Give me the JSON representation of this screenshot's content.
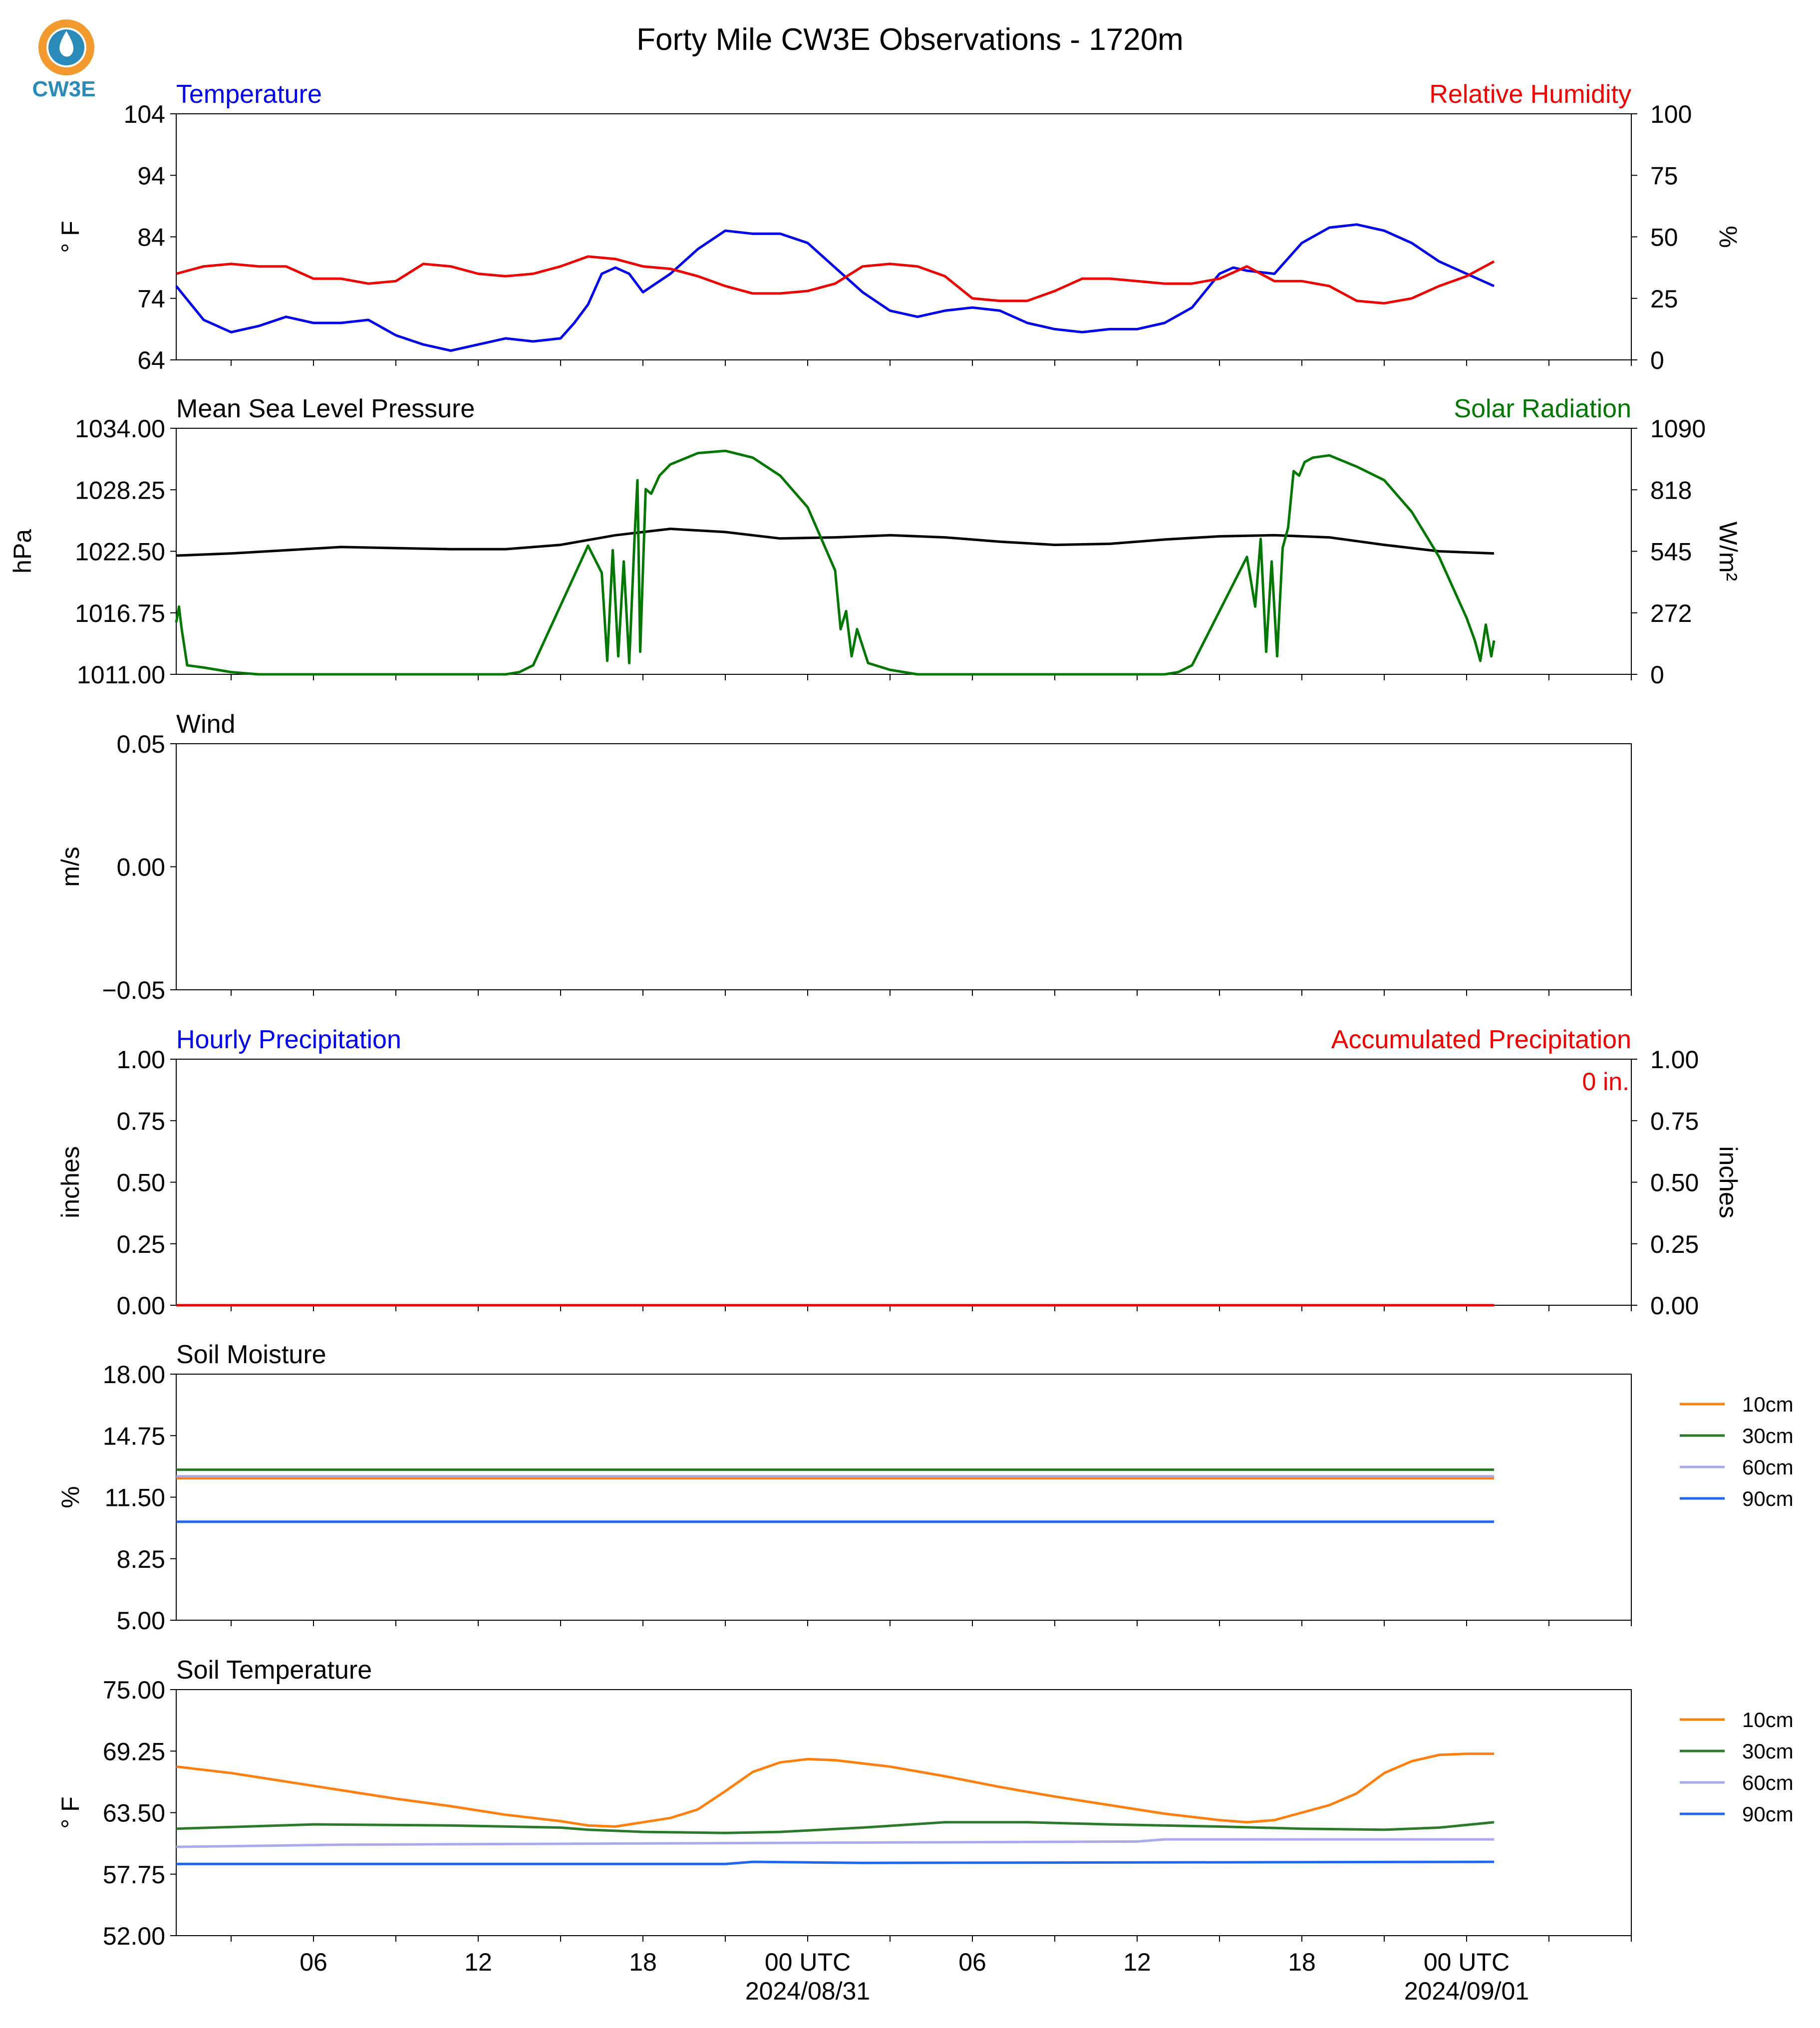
{
  "title": "Forty Mile CW3E Observations - 1720m",
  "logo": {
    "text": "CW3E",
    "ring_color": "#f29a2e",
    "drop_color": "#2a8ab8"
  },
  "x_axis": {
    "range_hours": [
      0,
      53
    ],
    "start_reference": "2024/08/30 01 UTC",
    "ticks": [
      {
        "h": 5,
        "label": "06"
      },
      {
        "h": 11,
        "label": "12"
      },
      {
        "h": 17,
        "label": "18"
      },
      {
        "h": 23,
        "label": "00 UTC",
        "date": "2024/08/31"
      },
      {
        "h": 29,
        "label": "06"
      },
      {
        "h": 35,
        "label": "12"
      },
      {
        "h": 41,
        "label": "18"
      },
      {
        "h": 47,
        "label": "00 UTC",
        "date": "2024/09/01"
      }
    ],
    "minor_every_hours": 3
  },
  "chart_data": [
    {
      "type": "line",
      "panel": "temperature_humidity",
      "left_title": "Temperature",
      "right_title": "Relative Humidity",
      "ylabel_left": "° F",
      "ylabel_right": "%",
      "ylim_left": [
        64,
        104
      ],
      "yticks_left": [
        "64",
        "74",
        "84",
        "94",
        "104"
      ],
      "ylim_right": [
        0,
        100
      ],
      "yticks_right": [
        "0",
        "25",
        "50",
        "75",
        "100"
      ],
      "series": [
        {
          "name": "Temperature",
          "color": "#0000ee",
          "axis": "left",
          "x": [
            0,
            1,
            2,
            3,
            4,
            5,
            6,
            7,
            8,
            9,
            10,
            11,
            12,
            13,
            14,
            14.5,
            15,
            15.5,
            16,
            16.5,
            17,
            18,
            19,
            20,
            21,
            22,
            23,
            24,
            25,
            26,
            27,
            28,
            29,
            30,
            31,
            32,
            33,
            34,
            35,
            36,
            37,
            38,
            38.5,
            39,
            40,
            41,
            42,
            43,
            44,
            45,
            46,
            47,
            48
          ],
          "y": [
            76,
            70.5,
            68.5,
            69.5,
            71,
            70,
            70,
            70.5,
            68,
            66.5,
            65.5,
            66.5,
            67.5,
            67,
            67.5,
            70,
            73,
            78,
            79,
            78,
            75,
            78,
            82,
            85,
            84.5,
            84.5,
            83,
            79,
            75,
            72,
            71,
            72,
            72.5,
            72,
            70,
            69,
            68.5,
            69,
            69,
            70,
            72.5,
            78,
            79,
            78.5,
            78,
            83,
            85.5,
            86,
            85,
            83,
            80,
            78,
            76
          ]
        },
        {
          "name": "Relative Humidity",
          "color": "#ee0000",
          "axis": "right",
          "x": [
            0,
            1,
            2,
            3,
            4,
            5,
            6,
            7,
            8,
            9,
            10,
            11,
            12,
            13,
            14,
            15,
            16,
            17,
            18,
            19,
            20,
            21,
            22,
            23,
            24,
            25,
            26,
            27,
            28,
            29,
            30,
            31,
            32,
            33,
            34,
            35,
            36,
            37,
            38,
            39,
            40,
            41,
            42,
            43,
            44,
            45,
            46,
            47,
            48
          ],
          "y": [
            35,
            38,
            39,
            38,
            38,
            33,
            33,
            31,
            32,
            39,
            38,
            35,
            34,
            35,
            38,
            42,
            41,
            38,
            37,
            34,
            30,
            27,
            27,
            28,
            31,
            38,
            39,
            38,
            34,
            25,
            24,
            24,
            28,
            33,
            33,
            32,
            31,
            31,
            33,
            38,
            32,
            32,
            30,
            24,
            23,
            25,
            30,
            34,
            40
          ]
        }
      ]
    },
    {
      "type": "line",
      "panel": "pressure_solar",
      "left_title": "Mean Sea Level Pressure",
      "right_title": "Solar Radiation",
      "ylabel_left": "hPa",
      "ylabel_right": "W/m²",
      "ylim_left": [
        1011,
        1034
      ],
      "yticks_left": [
        "1011.00",
        "1016.75",
        "1022.50",
        "1028.25",
        "1034.00"
      ],
      "ylim_right": [
        0,
        1090
      ],
      "yticks_right": [
        "0",
        "272",
        "545",
        "818",
        "1090"
      ],
      "series": [
        {
          "name": "Mean Sea Level Pressure",
          "color": "#000000",
          "axis": "left",
          "x": [
            0,
            2,
            4,
            6,
            8,
            10,
            12,
            14,
            16,
            17,
            18,
            20,
            22,
            24,
            26,
            28,
            30,
            32,
            34,
            36,
            38,
            40,
            42,
            44,
            46,
            48
          ],
          "y": [
            1022.1,
            1022.3,
            1022.6,
            1022.9,
            1022.8,
            1022.7,
            1022.7,
            1023.1,
            1024.0,
            1024.3,
            1024.6,
            1024.3,
            1023.7,
            1023.8,
            1024.0,
            1023.8,
            1023.4,
            1023.1,
            1023.2,
            1023.6,
            1023.9,
            1024.0,
            1023.8,
            1023.1,
            1022.5,
            1022.3
          ]
        },
        {
          "name": "Solar Radiation",
          "color": "#007700",
          "axis": "right",
          "x": [
            0,
            0.1,
            0.2,
            0.4,
            1,
            2,
            3,
            5,
            8,
            11,
            12,
            12.5,
            13,
            15,
            15.5,
            15.7,
            15.9,
            16.1,
            16.3,
            16.5,
            16.7,
            16.8,
            16.9,
            17.1,
            17.3,
            17.6,
            18,
            19,
            20,
            21,
            22,
            23,
            24,
            24.2,
            24.4,
            24.6,
            24.8,
            25.2,
            26,
            27,
            29,
            33,
            36,
            36.5,
            37,
            39,
            39.3,
            39.5,
            39.7,
            39.9,
            40.1,
            40.3,
            40.5,
            40.7,
            40.9,
            41.1,
            41.4,
            42,
            43,
            44,
            45,
            46,
            47,
            47.3,
            47.5,
            47.7,
            47.9,
            48
          ],
          "y": [
            230,
            300,
            200,
            40,
            30,
            10,
            0,
            0,
            0,
            0,
            0,
            10,
            40,
            570,
            450,
            60,
            550,
            80,
            500,
            50,
            620,
            860,
            100,
            820,
            800,
            880,
            930,
            980,
            990,
            960,
            880,
            740,
            460,
            200,
            280,
            80,
            200,
            50,
            20,
            0,
            0,
            0,
            0,
            10,
            40,
            520,
            300,
            600,
            100,
            500,
            80,
            560,
            650,
            900,
            880,
            940,
            960,
            970,
            920,
            860,
            720,
            520,
            250,
            150,
            60,
            220,
            80,
            150
          ]
        }
      ]
    },
    {
      "type": "line",
      "panel": "wind",
      "left_title": "Wind",
      "ylabel_left": "m/s",
      "ylim_left": [
        -0.055,
        0.055
      ],
      "yticks_left": [
        "−0.05",
        "0.00",
        "0.05"
      ],
      "series": []
    },
    {
      "type": "line",
      "panel": "precipitation",
      "left_title": "Hourly Precipitation",
      "right_title": "Accumulated Precipitation",
      "ylabel_left": "inches",
      "ylabel_right": "inches",
      "ylim_left": [
        0,
        1
      ],
      "yticks_left": [
        "0.00",
        "0.25",
        "0.50",
        "0.75",
        "1.00"
      ],
      "ylim_right": [
        0,
        1
      ],
      "yticks_right": [
        "0.00",
        "0.25",
        "0.50",
        "0.75",
        "1.00"
      ],
      "annotation": "0 in.",
      "series": [
        {
          "name": "Hourly Precipitation",
          "color": "#0000ee",
          "axis": "left",
          "x": [
            0,
            48
          ],
          "y": [
            0,
            0
          ]
        },
        {
          "name": "Accumulated Precipitation",
          "color": "#ee0000",
          "axis": "right",
          "x": [
            0,
            48
          ],
          "y": [
            0,
            0
          ]
        }
      ]
    },
    {
      "type": "line",
      "panel": "soil_moisture",
      "left_title": "Soil Moisture",
      "ylabel_left": "%",
      "ylim_left": [
        5,
        18
      ],
      "yticks_left": [
        "5.00",
        "8.25",
        "11.50",
        "14.75",
        "18.00"
      ],
      "legend": [
        "10cm",
        "30cm",
        "60cm",
        "90cm"
      ],
      "series": [
        {
          "name": "10cm",
          "color": "#ff7f0e",
          "axis": "left",
          "x": [
            0,
            48
          ],
          "y": [
            12.5,
            12.5
          ]
        },
        {
          "name": "30cm",
          "color": "#2a7a2a",
          "axis": "left",
          "x": [
            0,
            48
          ],
          "y": [
            12.95,
            12.95
          ]
        },
        {
          "name": "60cm",
          "color": "#a9a9ee",
          "axis": "left",
          "x": [
            0,
            48
          ],
          "y": [
            12.6,
            12.6
          ]
        },
        {
          "name": "90cm",
          "color": "#2066ee",
          "axis": "left",
          "x": [
            0,
            48
          ],
          "y": [
            10.2,
            10.2
          ]
        }
      ]
    },
    {
      "type": "line",
      "panel": "soil_temperature",
      "left_title": "Soil Temperature",
      "ylabel_left": "° F",
      "ylim_left": [
        52,
        75
      ],
      "yticks_left": [
        "52.00",
        "57.75",
        "63.50",
        "69.25",
        "75.00"
      ],
      "legend": [
        "10cm",
        "30cm",
        "60cm",
        "90cm"
      ],
      "series": [
        {
          "name": "10cm",
          "color": "#ff7f0e",
          "axis": "left",
          "x": [
            0,
            2,
            4,
            6,
            8,
            10,
            12,
            14,
            15,
            16,
            18,
            19,
            20,
            21,
            22,
            23,
            24,
            26,
            28,
            30,
            32,
            34,
            36,
            38,
            39,
            40,
            42,
            43,
            44,
            45,
            46,
            47,
            48
          ],
          "y": [
            67.8,
            67.2,
            66.4,
            65.6,
            64.8,
            64.1,
            63.3,
            62.7,
            62.3,
            62.2,
            63.0,
            63.8,
            65.5,
            67.3,
            68.2,
            68.5,
            68.4,
            67.8,
            66.9,
            65.9,
            65.0,
            64.2,
            63.4,
            62.8,
            62.6,
            62.8,
            64.2,
            65.3,
            67.2,
            68.3,
            68.9,
            69.0,
            69.0
          ]
        },
        {
          "name": "30cm",
          "color": "#2a7a2a",
          "axis": "left",
          "x": [
            0,
            5,
            10,
            14,
            15,
            17,
            20,
            22,
            25,
            28,
            31,
            34,
            38,
            41,
            44,
            46,
            48
          ],
          "y": [
            62.0,
            62.4,
            62.3,
            62.1,
            61.9,
            61.7,
            61.6,
            61.7,
            62.1,
            62.6,
            62.6,
            62.4,
            62.2,
            62.0,
            61.9,
            62.1,
            62.6
          ]
        },
        {
          "name": "60cm",
          "color": "#a9a9ee",
          "axis": "left",
          "x": [
            0,
            6,
            15,
            25,
            35,
            36,
            48
          ],
          "y": [
            60.3,
            60.5,
            60.6,
            60.7,
            60.8,
            61.0,
            61.0
          ]
        },
        {
          "name": "90cm",
          "color": "#2066ee",
          "axis": "left",
          "x": [
            0,
            20,
            21,
            25,
            48
          ],
          "y": [
            58.7,
            58.7,
            58.9,
            58.8,
            58.9
          ]
        }
      ]
    }
  ]
}
